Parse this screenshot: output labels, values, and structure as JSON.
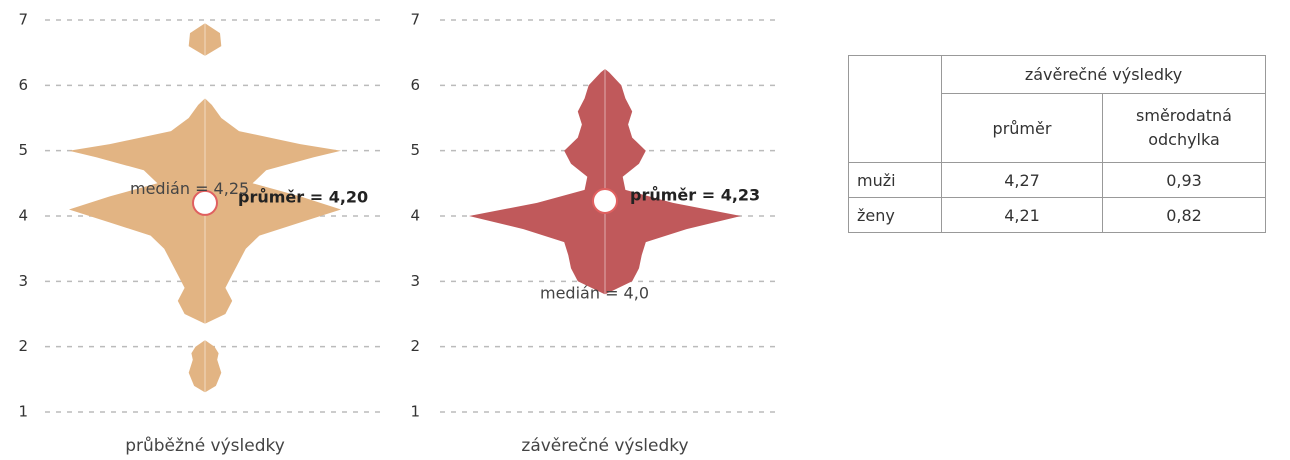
{
  "chart_data": [
    {
      "type": "violin",
      "xlabel": "průběžné výsledky",
      "color": "#e2b483",
      "ylim": [
        1,
        7
      ],
      "yticks": [
        1,
        2,
        3,
        4,
        5,
        6,
        7
      ],
      "grid": true,
      "density": {
        "y": [
          1.3,
          1.4,
          1.6,
          1.8,
          1.9,
          2.0,
          2.1,
          null,
          2.35,
          2.5,
          2.7,
          2.9,
          3.1,
          3.3,
          3.5,
          3.7,
          3.9,
          4.1,
          4.3,
          4.5,
          4.7,
          4.9,
          5.0,
          5.1,
          5.3,
          5.5,
          5.7,
          5.8,
          null,
          6.45,
          6.6,
          6.8,
          6.95
        ],
        "width": [
          0,
          0.08,
          0.12,
          0.09,
          0.1,
          0.07,
          0,
          null,
          0,
          0.15,
          0.2,
          0.15,
          0.2,
          0.25,
          0.3,
          0.4,
          0.7,
          1.0,
          0.7,
          0.35,
          0.45,
          0.8,
          1.0,
          0.7,
          0.25,
          0.12,
          0.05,
          0,
          null,
          0,
          0.12,
          0.11,
          0
        ]
      },
      "mean": 4.2,
      "mean_label": "průměr = 4,20",
      "median": 4.25,
      "median_label": "medián = 4,25"
    },
    {
      "type": "violin",
      "xlabel": "závěrečné výsledky",
      "color": "#c0595b",
      "ylim": [
        1,
        7
      ],
      "yticks": [
        1,
        2,
        3,
        4,
        5,
        6,
        7
      ],
      "grid": true,
      "density": {
        "y": [
          2.8,
          3.0,
          3.2,
          3.4,
          3.6,
          3.8,
          4.0,
          4.2,
          4.4,
          4.6,
          4.8,
          5.0,
          5.2,
          5.4,
          5.6,
          5.8,
          6.0,
          6.2,
          6.25
        ],
        "width": [
          0,
          0.2,
          0.25,
          0.27,
          0.3,
          0.6,
          1.0,
          0.5,
          0.15,
          0.13,
          0.25,
          0.3,
          0.2,
          0.17,
          0.2,
          0.15,
          0.12,
          0.03,
          0
        ]
      },
      "mean": 4.23,
      "mean_label": "průměr = 4,23",
      "median": 4.0,
      "median_label": "medián = 4,0"
    }
  ],
  "table": {
    "header": [
      "závěrečné výsledky",
      "průměr",
      "směrodatná odchylka"
    ],
    "rows": [
      [
        "muži",
        "4,27",
        "0,93"
      ],
      [
        "ženy",
        "4,21",
        "0,82"
      ]
    ]
  }
}
